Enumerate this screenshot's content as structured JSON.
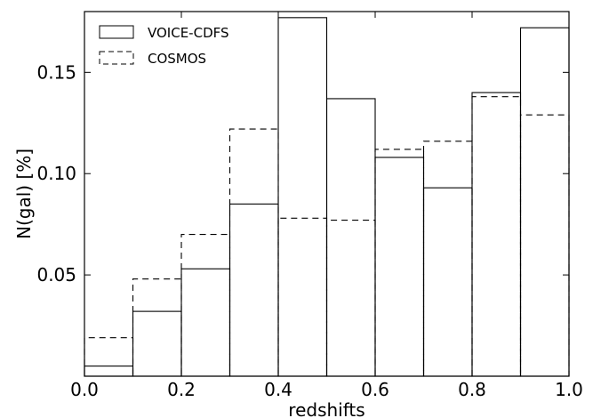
{
  "chart_data": {
    "type": "bar",
    "title": "",
    "xlabel": "redshifts",
    "ylabel": "N(gal) [%]",
    "xlim": [
      0.0,
      1.0
    ],
    "ylim": [
      0.0,
      0.18
    ],
    "bin_edges": [
      0.0,
      0.1,
      0.2,
      0.3,
      0.4,
      0.5,
      0.6,
      0.7,
      0.8,
      0.9,
      1.0
    ],
    "x_ticks": [
      "0.0",
      "0.2",
      "0.4",
      "0.6",
      "0.8",
      "1.0"
    ],
    "y_ticks": [
      "0.05",
      "0.10",
      "0.15"
    ],
    "grid": false,
    "legend_position": "top-left",
    "series": [
      {
        "name": "VOICE-CDFS",
        "style": "solid",
        "values": [
          0.005,
          0.032,
          0.053,
          0.085,
          0.177,
          0.137,
          0.108,
          0.093,
          0.14,
          0.172
        ]
      },
      {
        "name": "COSMOS",
        "style": "dashed",
        "values": [
          0.019,
          0.048,
          0.07,
          0.122,
          0.078,
          0.077,
          0.112,
          0.116,
          0.138,
          0.129
        ]
      }
    ]
  }
}
